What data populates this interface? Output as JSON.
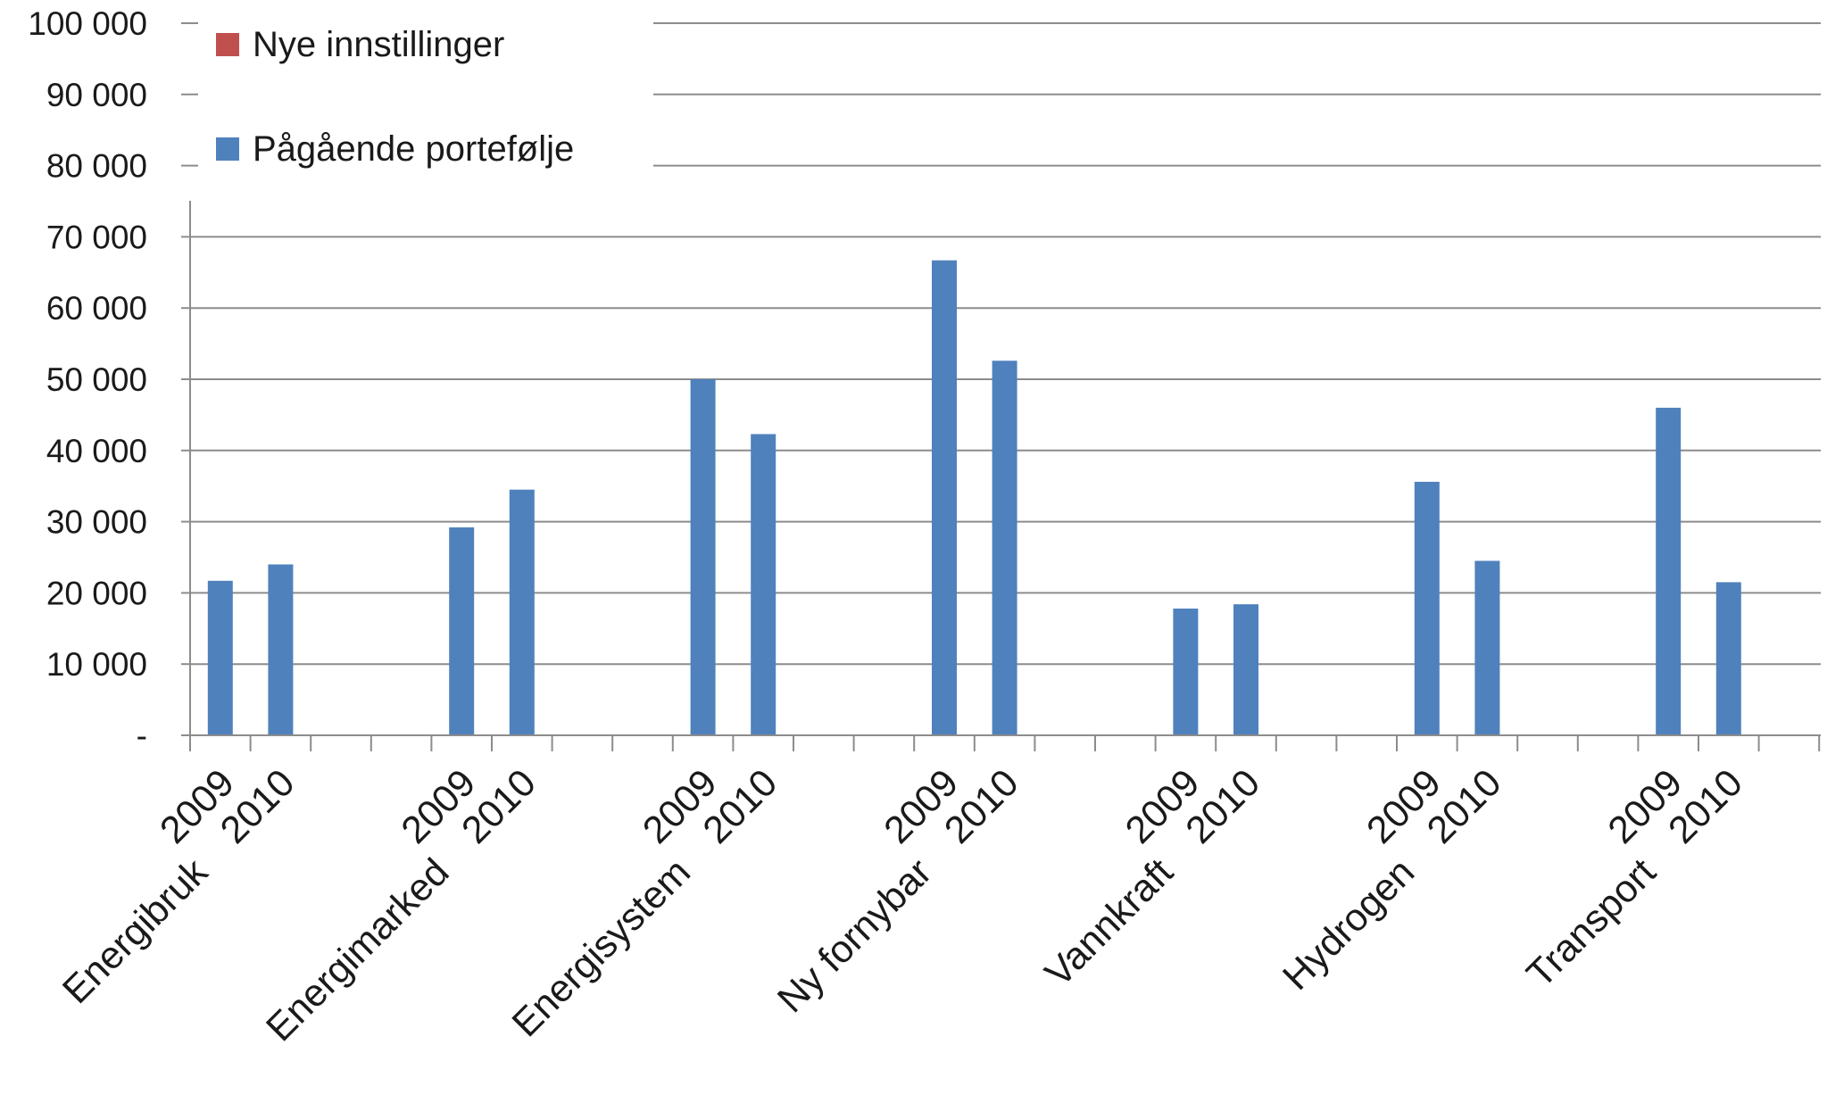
{
  "chart_data": {
    "type": "bar",
    "title": "",
    "xlabel": "",
    "ylabel": "",
    "ylim": [
      0,
      100000
    ],
    "y_ticks": [
      "-",
      "10 000",
      "20 000",
      "30 000",
      "40 000",
      "50 000",
      "60 000",
      "70 000",
      "80 000",
      "90 000",
      "100 000"
    ],
    "grid": true,
    "legend_placement": "top-left",
    "groups": [
      "Energibruk",
      "Energimarked",
      "Energisystem",
      "Ny fornybar",
      "Vannkraft",
      "Hydrogen",
      "Transport"
    ],
    "years": [
      "2009",
      "2010"
    ],
    "series": [
      {
        "name": "Pågående portefølje",
        "color": "#4f81bd",
        "values": [
          21700,
          24000,
          29200,
          34500,
          50000,
          42300,
          66700,
          52600,
          17800,
          18400,
          35600,
          24500,
          46000,
          21500
        ]
      },
      {
        "name": "Nye innstillinger",
        "color": "#c0504d",
        "values": [
          0,
          0,
          0,
          0,
          0,
          0,
          0,
          0,
          0,
          0,
          0,
          0,
          0,
          0
        ]
      }
    ],
    "legend_order": [
      "Nye innstillinger",
      "Pågående portefølje"
    ]
  }
}
